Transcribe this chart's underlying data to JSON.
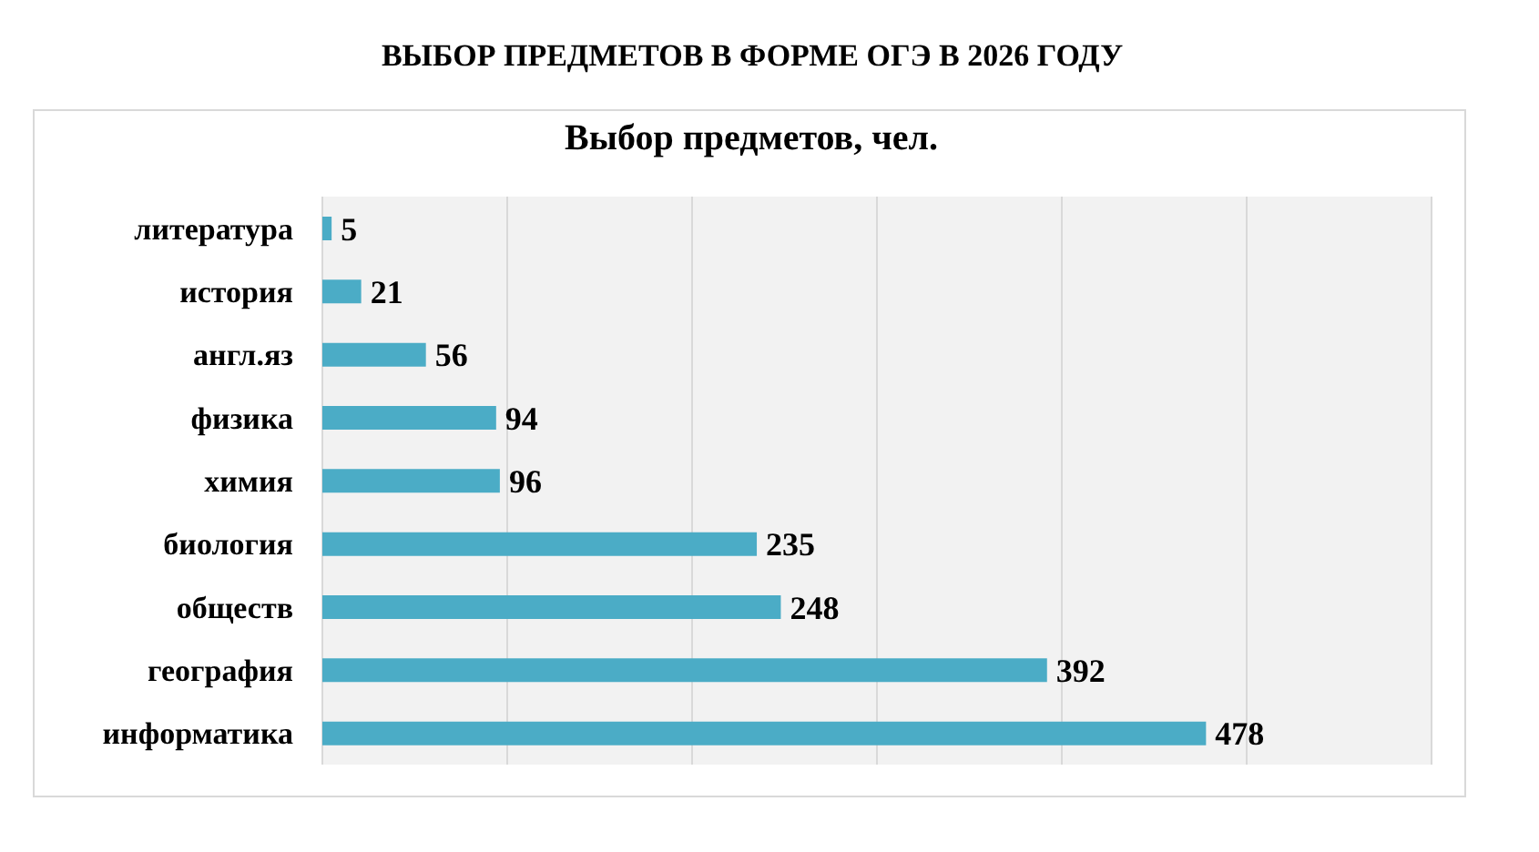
{
  "chart_data": {
    "type": "bar",
    "orientation": "horizontal",
    "title": "ВЫБОР ПРЕДМЕТОВ В ФОРМЕ ОГЭ В 2026 ГОДУ",
    "subtitle": "Выбор предметов, чел.",
    "categories": [
      "литература",
      "история",
      "англ.яз",
      "физика",
      "химия",
      "биология",
      "обществ",
      "география",
      "информатика"
    ],
    "values": [
      5,
      21,
      56,
      94,
      96,
      235,
      248,
      392,
      478
    ],
    "color": "#4bacc6",
    "xlim": [
      0,
      600
    ],
    "xticks": [
      0,
      100,
      200,
      300,
      400,
      500,
      600
    ],
    "grid": "x",
    "tick_labels": "y",
    "data_labels": true
  }
}
